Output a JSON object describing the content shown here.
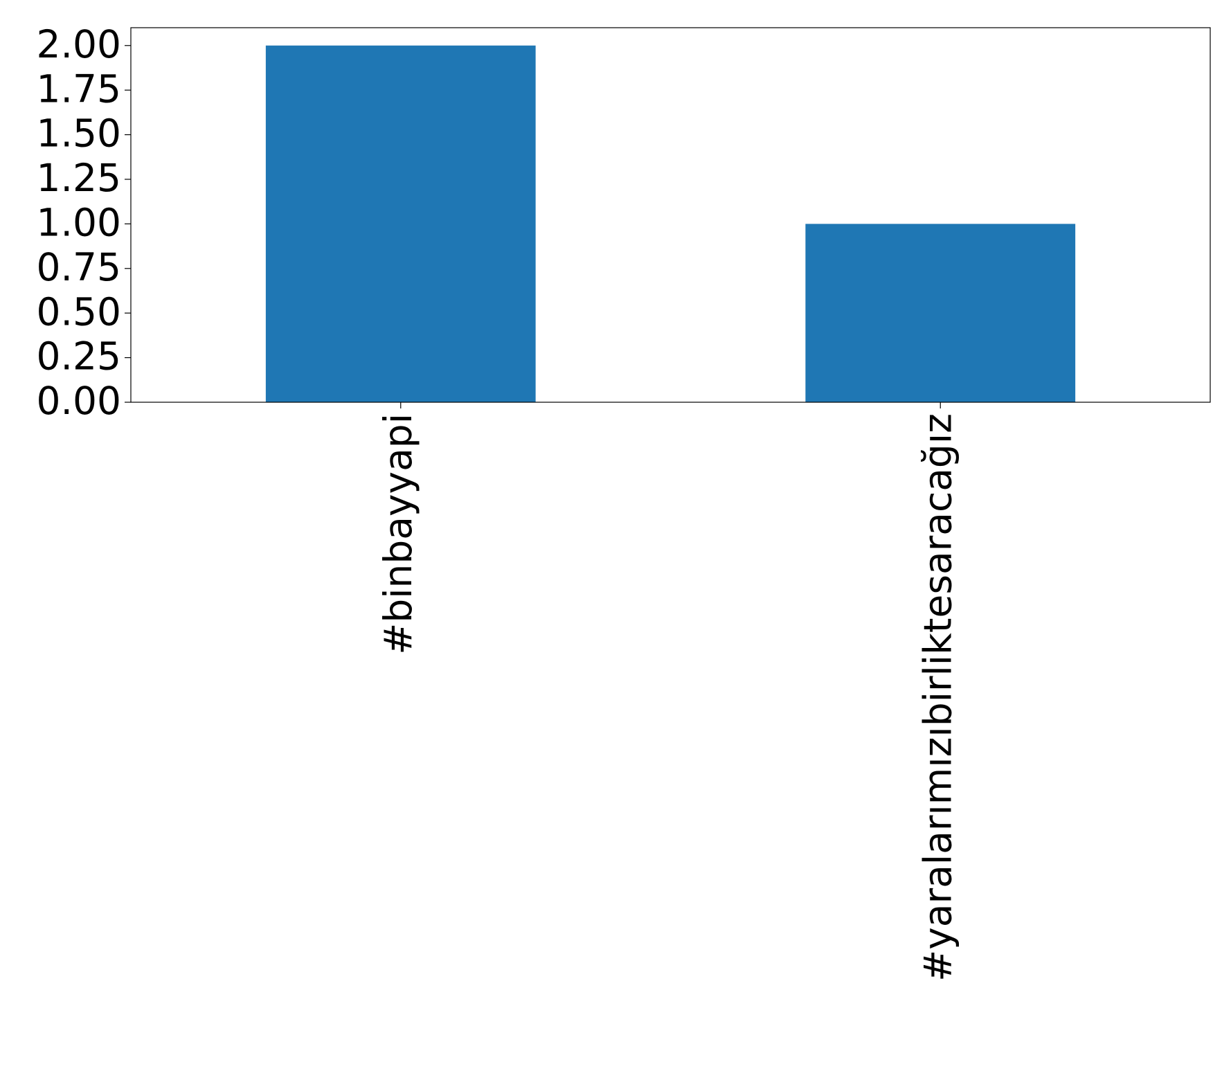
{
  "chart_data": {
    "type": "bar",
    "categories": [
      "#binbayyapi",
      "#yaralarımızıbirliktesaracağız"
    ],
    "values": [
      2,
      1
    ],
    "color": "#1f77b4",
    "ylim": [
      0,
      2.1
    ],
    "yticks": [
      {
        "value": 0,
        "label": "0.00"
      },
      {
        "value": 0.25,
        "label": "0.25"
      },
      {
        "value": 0.5,
        "label": "0.50"
      },
      {
        "value": 0.75,
        "label": "0.75"
      },
      {
        "value": 1,
        "label": "1.00"
      },
      {
        "value": 1.25,
        "label": "1.25"
      },
      {
        "value": 1.5,
        "label": "1.50"
      },
      {
        "value": 1.75,
        "label": "1.75"
      },
      {
        "value": 2,
        "label": "2.00"
      }
    ],
    "grid": false
  }
}
